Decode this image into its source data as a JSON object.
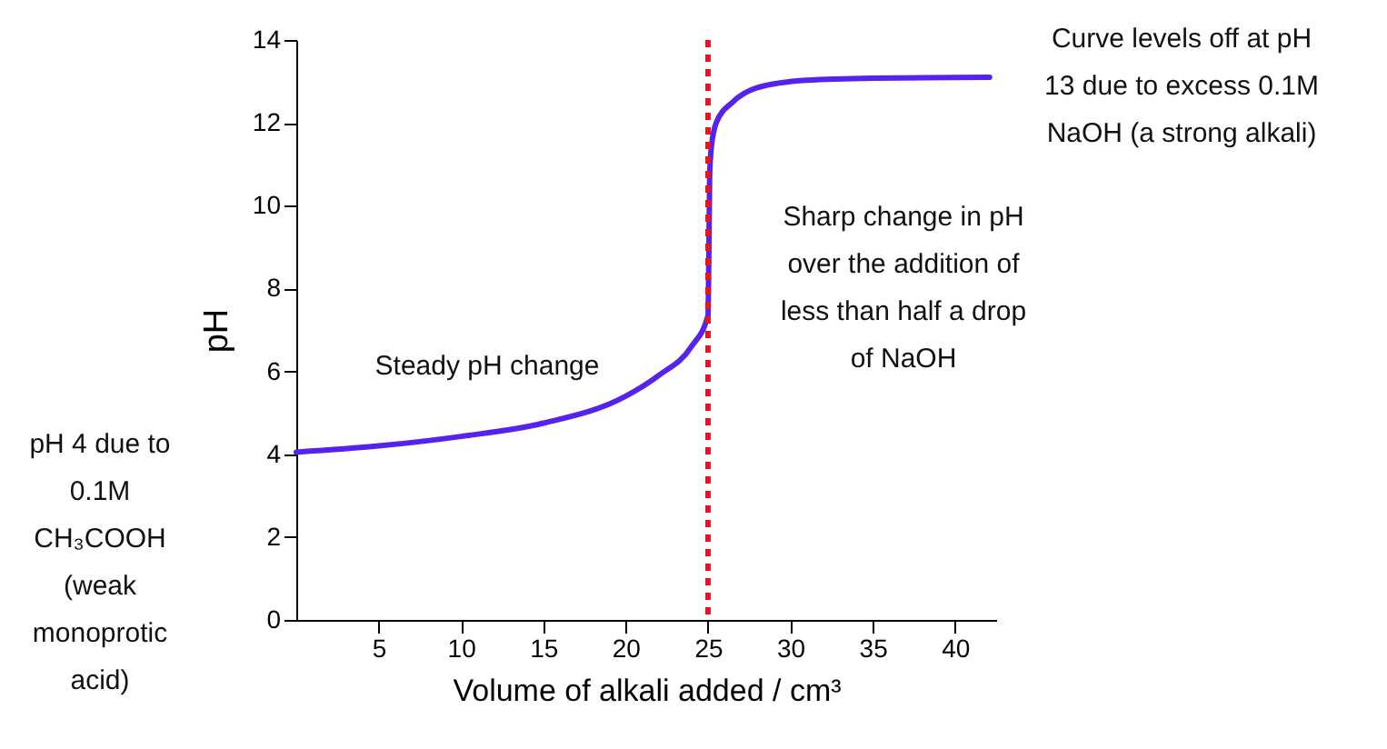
{
  "chart_data": {
    "type": "line",
    "xlabel": "Volume of alkali added / cm³",
    "ylabel": "pH",
    "x": [
      0,
      5,
      10,
      15,
      20,
      22,
      24,
      25,
      25.05,
      25.1,
      25.2,
      25.5,
      26.5,
      28,
      31,
      35,
      42.1
    ],
    "series": [
      {
        "color": "#5522ee",
        "values": [
          4.05,
          4.2,
          4.43,
          4.75,
          5.4,
          5.9,
          6.6,
          7.35,
          8.7,
          10.7,
          11.4,
          12.0,
          12.5,
          12.85,
          13.03,
          13.08,
          13.1
        ]
      }
    ],
    "xlim": [
      0,
      42.5
    ],
    "ylim": [
      0,
      14
    ],
    "xticks": [
      5,
      10,
      15,
      20,
      25,
      30,
      35,
      40
    ],
    "yticks": [
      0,
      2,
      4,
      6,
      8,
      10,
      12,
      14
    ],
    "grid": false,
    "line_style": "solid",
    "ref_lines": [
      {
        "axis": "x",
        "value": 25,
        "color": "#e8141c",
        "line_style": "dotted"
      }
    ],
    "annotations": [
      "Steady pH change",
      "Sharp change in pH over the addition of less than half a drop of NaOH",
      "Curve levels off at pH 13 due to excess 0.1M NaOH (a strong alkali)",
      "pH 4 due to 0.1M CH₃COOH (weak monoprotic acid)"
    ]
  }
}
